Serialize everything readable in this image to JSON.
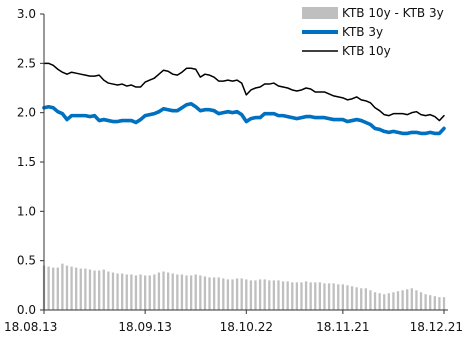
{
  "chart_data": {
    "type": "line",
    "title": "",
    "xlabel": "",
    "ylabel": "",
    "ylim": [
      0.0,
      3.0
    ],
    "yticks": [
      "0.0",
      "0.5",
      "1.0",
      "1.5",
      "2.0",
      "2.5",
      "3.0"
    ],
    "xtick_labels": [
      "18.08.13",
      "18.09.13",
      "18.10.22",
      "18.11.21",
      "18.12.21"
    ],
    "x": [
      "18.08.13",
      "18.08.14",
      "18.08.16",
      "18.08.17",
      "18.08.20",
      "18.08.21",
      "18.08.22",
      "18.08.23",
      "18.08.24",
      "18.08.27",
      "18.08.28",
      "18.08.29",
      "18.08.30",
      "18.08.31",
      "18.09.03",
      "18.09.04",
      "18.09.05",
      "18.09.06",
      "18.09.07",
      "18.09.10",
      "18.09.11",
      "18.09.12",
      "18.09.13",
      "18.09.14",
      "18.09.17",
      "18.09.18",
      "18.09.19",
      "18.09.20",
      "18.09.21",
      "18.09.27",
      "18.09.28",
      "18.10.01",
      "18.10.02",
      "18.10.04",
      "18.10.05",
      "18.10.08",
      "18.10.10",
      "18.10.11",
      "18.10.12",
      "18.10.15",
      "18.10.16",
      "18.10.17",
      "18.10.18",
      "18.10.19",
      "18.10.22",
      "18.10.23",
      "18.10.24",
      "18.10.25",
      "18.10.26",
      "18.10.29",
      "18.10.30",
      "18.10.31",
      "18.11.01",
      "18.11.02",
      "18.11.05",
      "18.11.06",
      "18.11.07",
      "18.11.08",
      "18.11.09",
      "18.11.12",
      "18.11.13",
      "18.11.14",
      "18.11.16",
      "18.11.19",
      "18.11.20",
      "18.11.21",
      "18.11.22",
      "18.11.23",
      "18.11.26",
      "18.11.27",
      "18.11.28",
      "18.11.29",
      "18.11.30",
      "18.12.03",
      "18.12.04",
      "18.12.05",
      "18.12.06",
      "18.12.07",
      "18.12.10",
      "18.12.11",
      "18.12.12",
      "18.12.13",
      "18.12.14",
      "18.12.17",
      "18.12.18",
      "18.12.19",
      "18.12.20",
      "18.12.21"
    ],
    "series": [
      {
        "name": "KTB 10y - KTB 3y",
        "kind": "bar",
        "color": "#bfbfbf",
        "values": [
          0.45,
          0.44,
          0.43,
          0.43,
          0.47,
          0.45,
          0.44,
          0.43,
          0.42,
          0.42,
          0.41,
          0.4,
          0.4,
          0.41,
          0.39,
          0.38,
          0.37,
          0.37,
          0.36,
          0.36,
          0.35,
          0.36,
          0.35,
          0.35,
          0.36,
          0.38,
          0.39,
          0.38,
          0.37,
          0.36,
          0.36,
          0.35,
          0.35,
          0.36,
          0.35,
          0.34,
          0.33,
          0.33,
          0.33,
          0.32,
          0.31,
          0.31,
          0.32,
          0.32,
          0.31,
          0.3,
          0.3,
          0.31,
          0.31,
          0.3,
          0.3,
          0.3,
          0.29,
          0.29,
          0.28,
          0.28,
          0.28,
          0.29,
          0.28,
          0.28,
          0.28,
          0.27,
          0.27,
          0.27,
          0.26,
          0.26,
          0.25,
          0.24,
          0.23,
          0.22,
          0.22,
          0.2,
          0.18,
          0.17,
          0.16,
          0.17,
          0.18,
          0.19,
          0.2,
          0.21,
          0.22,
          0.2,
          0.18,
          0.16,
          0.15,
          0.14,
          0.13,
          0.13
        ]
      },
      {
        "name": "KTB 3y",
        "kind": "line",
        "color": "#0070c0",
        "values": [
          2.05,
          2.06,
          2.05,
          2.01,
          1.99,
          1.93,
          1.97,
          1.97,
          1.97,
          1.97,
          1.96,
          1.97,
          1.92,
          1.93,
          1.92,
          1.91,
          1.91,
          1.92,
          1.92,
          1.92,
          1.9,
          1.93,
          1.97,
          1.98,
          1.99,
          2.01,
          2.04,
          2.03,
          2.02,
          2.02,
          2.05,
          2.08,
          2.09,
          2.06,
          2.02,
          2.03,
          2.03,
          2.02,
          1.99,
          2.0,
          2.01,
          2.0,
          2.01,
          1.98,
          1.91,
          1.94,
          1.95,
          1.95,
          1.99,
          1.99,
          1.99,
          1.97,
          1.97,
          1.96,
          1.95,
          1.94,
          1.95,
          1.96,
          1.96,
          1.95,
          1.95,
          1.95,
          1.94,
          1.93,
          1.93,
          1.93,
          1.91,
          1.92,
          1.93,
          1.92,
          1.9,
          1.88,
          1.84,
          1.83,
          1.81,
          1.8,
          1.81,
          1.8,
          1.79,
          1.79,
          1.8,
          1.8,
          1.79,
          1.79,
          1.8,
          1.79,
          1.79,
          1.84
        ]
      },
      {
        "name": "KTB 10y",
        "kind": "line",
        "color": "#000000",
        "values": [
          2.5,
          2.5,
          2.48,
          2.44,
          2.41,
          2.39,
          2.41,
          2.4,
          2.39,
          2.38,
          2.37,
          2.37,
          2.38,
          2.33,
          2.3,
          2.29,
          2.28,
          2.29,
          2.27,
          2.28,
          2.26,
          2.26,
          2.31,
          2.33,
          2.35,
          2.39,
          2.43,
          2.42,
          2.39,
          2.38,
          2.41,
          2.45,
          2.45,
          2.44,
          2.36,
          2.39,
          2.38,
          2.36,
          2.32,
          2.32,
          2.33,
          2.32,
          2.33,
          2.3,
          2.18,
          2.23,
          2.25,
          2.26,
          2.29,
          2.29,
          2.3,
          2.27,
          2.26,
          2.25,
          2.23,
          2.22,
          2.23,
          2.25,
          2.24,
          2.21,
          2.21,
          2.21,
          2.19,
          2.17,
          2.16,
          2.15,
          2.13,
          2.14,
          2.16,
          2.13,
          2.12,
          2.1,
          2.05,
          2.02,
          1.98,
          1.97,
          1.99,
          1.99,
          1.99,
          1.98,
          2.0,
          2.01,
          1.98,
          1.97,
          1.98,
          1.96,
          1.92,
          1.97
        ]
      }
    ],
    "legend_position": "top-right",
    "grid": false
  }
}
